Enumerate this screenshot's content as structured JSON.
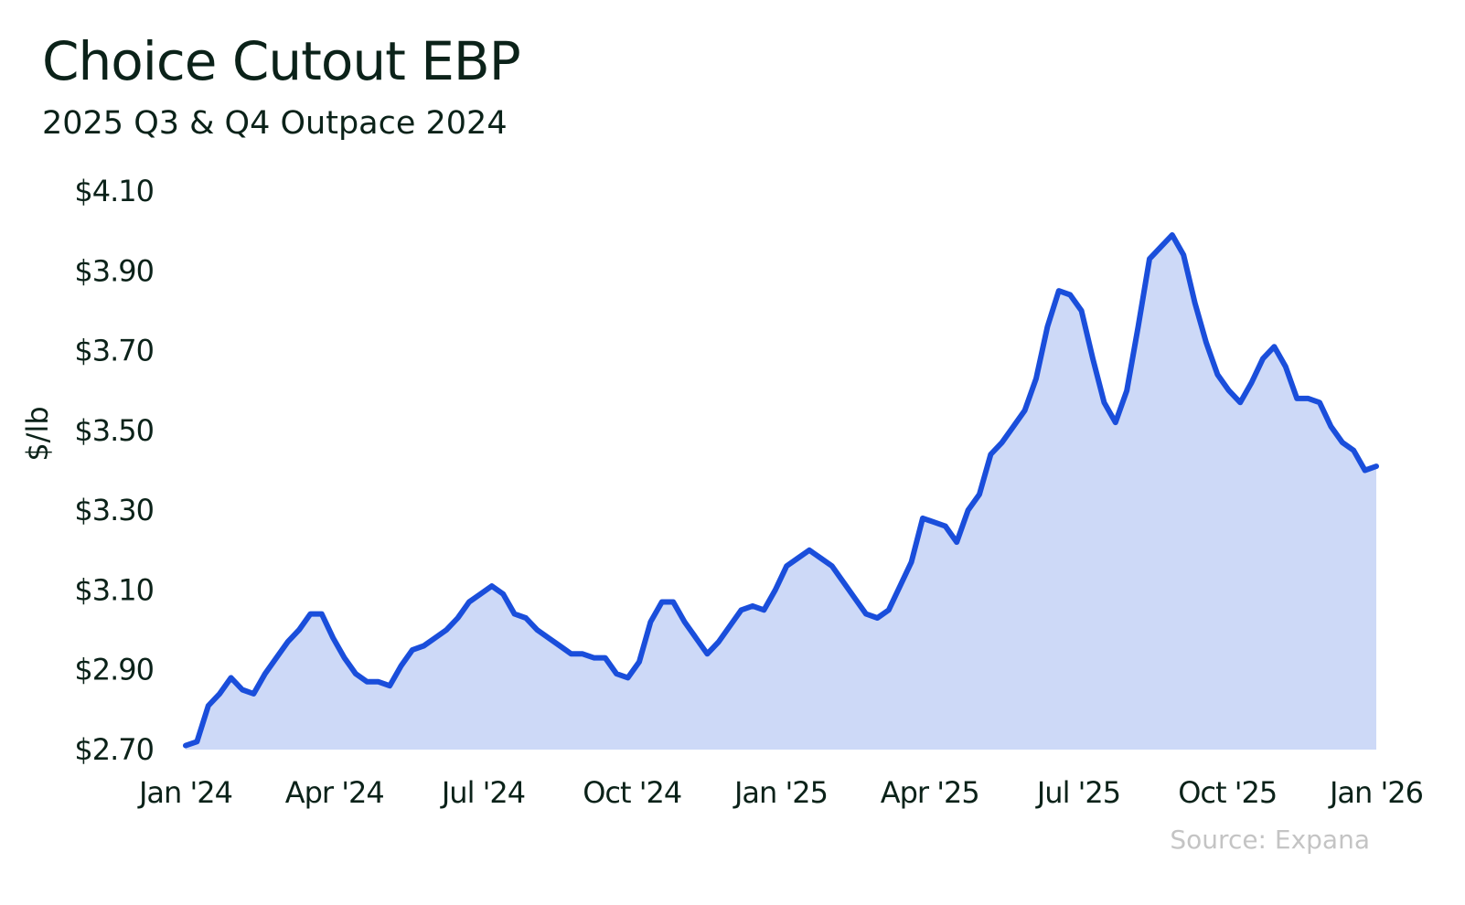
{
  "chart_data": {
    "type": "area",
    "title": "Choice Cutout EBP",
    "subtitle": "2025 Q3 & Q4 Outpace 2024",
    "ylabel": "$/lb",
    "xlabel": "",
    "source": "Source: Expana",
    "ylim": [
      2.7,
      4.1
    ],
    "y_ticks": [
      2.7,
      2.9,
      3.1,
      3.3,
      3.5,
      3.7,
      3.9,
      4.1
    ],
    "y_tick_labels": [
      "$2.70",
      "$2.90",
      "$3.10",
      "$3.30",
      "$3.50",
      "$3.70",
      "$3.90",
      "$4.10"
    ],
    "x_tick_labels": [
      "Jan '24",
      "Apr '24",
      "Jul '24",
      "Oct '24",
      "Jan '25",
      "Apr '25",
      "Jul '25",
      "Oct '25",
      "Jan '26"
    ],
    "x_range_weeks": [
      0,
      104
    ],
    "grid": false,
    "legend": "none",
    "line_color": "#1a4edb",
    "fill_color": "#cdd9f7",
    "series": [
      {
        "values": [
          2.71,
          2.72,
          2.81,
          2.84,
          2.88,
          2.85,
          2.84,
          2.89,
          2.93,
          2.97,
          3.0,
          3.04,
          3.04,
          2.98,
          2.93,
          2.89,
          2.87,
          2.87,
          2.86,
          2.91,
          2.95,
          2.96,
          2.98,
          3.0,
          3.03,
          3.07,
          3.09,
          3.11,
          3.09,
          3.04,
          3.03,
          3.0,
          2.98,
          2.96,
          2.94,
          2.94,
          2.93,
          2.93,
          2.89,
          2.88,
          2.92,
          3.02,
          3.07,
          3.07,
          3.02,
          2.98,
          2.94,
          2.97,
          3.01,
          3.05,
          3.06,
          3.05,
          3.1,
          3.16,
          3.18,
          3.2,
          3.18,
          3.16,
          3.12,
          3.08,
          3.04,
          3.03,
          3.05,
          3.11,
          3.17,
          3.28,
          3.27,
          3.26,
          3.22,
          3.3,
          3.34,
          3.44,
          3.47,
          3.51,
          3.55,
          3.63,
          3.76,
          3.85,
          3.84,
          3.8,
          3.68,
          3.57,
          3.52,
          3.6,
          3.76,
          3.93,
          3.96,
          3.99,
          3.94,
          3.82,
          3.72,
          3.64,
          3.6,
          3.57,
          3.62,
          3.68,
          3.71,
          3.66,
          3.58,
          3.58,
          3.57,
          3.51,
          3.47,
          3.45,
          3.4,
          3.41
        ]
      }
    ]
  }
}
